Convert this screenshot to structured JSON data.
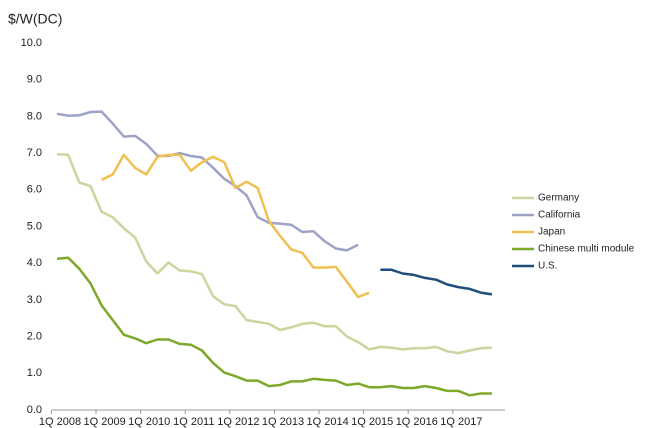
{
  "chart_data": {
    "type": "line",
    "y_label": "$/W(DC)",
    "categories": [
      "1Q 2008",
      null,
      null,
      null,
      "1Q 2009",
      null,
      null,
      null,
      "1Q 2010",
      null,
      null,
      null,
      "1Q 2011",
      null,
      null,
      null,
      "1Q 2012",
      null,
      null,
      null,
      "1Q 2013",
      null,
      null,
      null,
      "1Q 2014",
      null,
      null,
      null,
      "1Q 2015",
      null,
      null,
      null,
      "1Q 2016",
      null,
      null,
      null,
      "1Q 2017",
      null,
      null,
      null
    ],
    "series": [
      {
        "name": "Germany",
        "color": "#c8d79e",
        "values": [
          6.97,
          6.95,
          6.2,
          6.1,
          5.4,
          5.25,
          4.95,
          4.7,
          4.05,
          3.72,
          4.02,
          3.8,
          3.78,
          3.7,
          3.1,
          2.88,
          2.83,
          2.45,
          2.4,
          2.35,
          2.18,
          2.25,
          2.35,
          2.38,
          2.28,
          2.28,
          2.0,
          1.85,
          1.65,
          1.72,
          1.7,
          1.65,
          1.68,
          1.68,
          1.72,
          1.6,
          1.55,
          1.62,
          1.68,
          1.7
        ]
      },
      {
        "name": "California",
        "color": "#9ea3c6",
        "values": [
          8.07,
          8.02,
          8.03,
          8.12,
          8.13,
          7.8,
          7.45,
          7.47,
          7.25,
          6.93,
          6.92,
          7.0,
          6.92,
          6.88,
          6.6,
          6.3,
          6.1,
          5.85,
          5.25,
          5.1,
          5.08,
          5.05,
          4.85,
          4.87,
          4.6,
          4.4,
          4.35,
          4.5,
          null,
          null,
          null,
          null,
          null,
          null,
          null,
          null,
          null,
          null,
          null,
          null
        ]
      },
      {
        "name": "Japan",
        "color": "#f0c050",
        "values": [
          null,
          null,
          null,
          null,
          6.27,
          6.42,
          6.95,
          6.6,
          6.42,
          6.9,
          6.95,
          6.95,
          6.52,
          6.75,
          6.9,
          6.75,
          6.05,
          6.22,
          6.05,
          5.15,
          4.75,
          4.38,
          4.28,
          3.88,
          3.88,
          3.9,
          3.5,
          3.08,
          3.2,
          null,
          null,
          null,
          null,
          null,
          null,
          null,
          null,
          null,
          null,
          null
        ]
      },
      {
        "name": "Chinese multi module",
        "color": "#7ea82a",
        "values": [
          4.12,
          4.15,
          3.85,
          3.45,
          2.85,
          2.45,
          2.05,
          1.95,
          1.82,
          1.92,
          1.92,
          1.8,
          1.78,
          1.62,
          1.28,
          1.02,
          0.92,
          0.8,
          0.8,
          0.65,
          0.68,
          0.78,
          0.78,
          0.85,
          0.82,
          0.8,
          0.68,
          0.72,
          0.62,
          0.62,
          0.65,
          0.6,
          0.6,
          0.65,
          0.6,
          0.52,
          0.52,
          0.4,
          0.45,
          0.45
        ]
      },
      {
        "name": "U.S.",
        "color": "#1f4e79",
        "values": [
          null,
          null,
          null,
          null,
          null,
          null,
          null,
          null,
          null,
          null,
          null,
          null,
          null,
          null,
          null,
          null,
          null,
          null,
          null,
          null,
          null,
          null,
          null,
          null,
          null,
          null,
          null,
          null,
          null,
          3.82,
          3.82,
          3.72,
          3.68,
          3.6,
          3.55,
          3.42,
          3.35,
          3.3,
          3.2,
          3.15
        ]
      }
    ],
    "ylim": [
      0,
      10
    ],
    "yticks": [
      {
        "value": 0,
        "label": "0.0"
      },
      {
        "value": 1,
        "label": "1.0"
      },
      {
        "value": 2,
        "label": "2.0"
      },
      {
        "value": 3,
        "label": "3.0"
      },
      {
        "value": 4,
        "label": "4.0"
      },
      {
        "value": 5,
        "label": "5.0"
      },
      {
        "value": 6,
        "label": "6.0"
      },
      {
        "value": 7,
        "label": "7.0"
      },
      {
        "value": 8,
        "label": "8.0"
      },
      {
        "value": 9,
        "label": "9.0"
      },
      {
        "value": 10,
        "label": "10.0"
      }
    ],
    "grid": false,
    "legend": "right"
  }
}
